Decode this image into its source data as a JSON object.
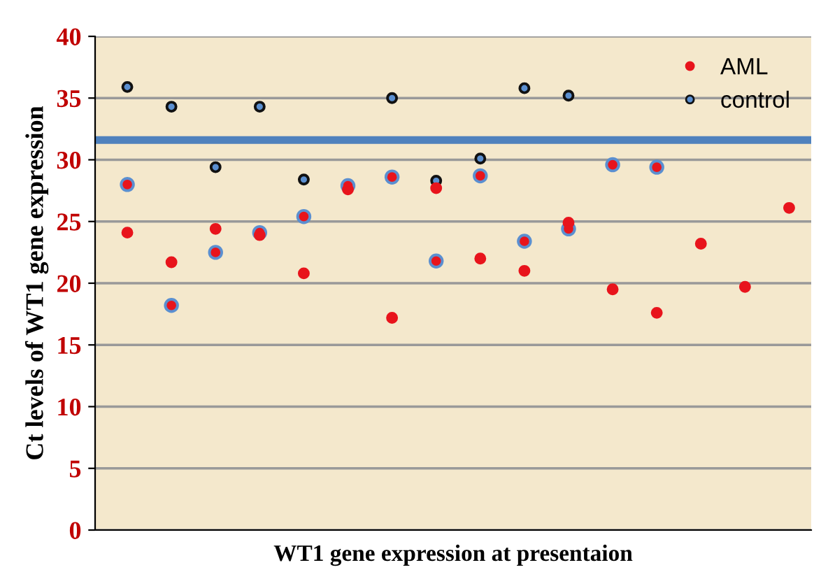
{
  "chart_data": {
    "type": "scatter",
    "xlabel": "WT1 gene expression at presentaion",
    "ylabel": "Ct levels of WT1 gene expression",
    "categories": [
      null,
      null,
      null,
      null,
      null,
      null,
      null,
      null,
      null,
      null,
      null,
      null,
      null,
      null,
      null,
      null
    ],
    "series": [
      {
        "name": "AML",
        "color": "#e8141c",
        "values": [
          24.1,
          21.7,
          24.4,
          23.9,
          20.8,
          27.6,
          17.2,
          27.7,
          22.0,
          21.0,
          24.9,
          19.5,
          17.6,
          23.2,
          19.7,
          26.1
        ]
      },
      {
        "name": "control",
        "color": "#111111",
        "values": [
          35.9,
          34.3,
          29.4,
          34.3,
          28.4,
          null,
          35.0,
          28.3,
          30.1,
          35.8,
          35.2,
          null,
          null,
          null,
          null,
          null
        ]
      },
      {
        "color": "#5b8fd0",
        "values": [
          28.0,
          18.2,
          22.5,
          24.1,
          25.4,
          27.9,
          28.6,
          21.8,
          28.7,
          23.4,
          24.4,
          29.6,
          29.4,
          null,
          null,
          null
        ]
      }
    ],
    "ylim": [
      0,
      40
    ],
    "yticks": [
      0,
      5,
      10,
      15,
      20,
      25,
      30,
      35,
      40
    ],
    "grid": "y",
    "legend": "top right",
    "marker": "circle",
    "ref_lines": [
      {
        "axis": "y",
        "value": 31.6,
        "color": "#4f81bd"
      }
    ]
  }
}
